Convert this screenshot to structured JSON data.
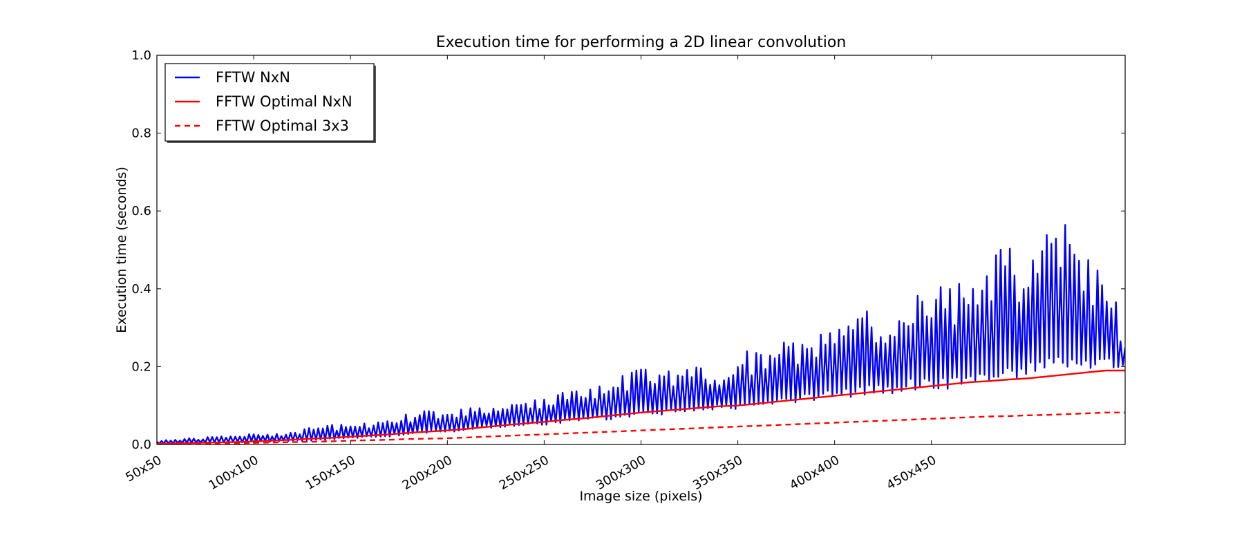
{
  "chart_data": {
    "type": "line",
    "title": "Execution time for performing a 2D linear convolution",
    "xlabel": "Image size (pixels)",
    "ylabel": "Execution time (seconds)",
    "xlim": [
      50,
      550
    ],
    "ylim": [
      0,
      1.0
    ],
    "x_ticks": [
      {
        "value": 50,
        "label": "50x50"
      },
      {
        "value": 100,
        "label": "100x100"
      },
      {
        "value": 150,
        "label": "150x150"
      },
      {
        "value": 200,
        "label": "200x200"
      },
      {
        "value": 250,
        "label": "250x250"
      },
      {
        "value": 300,
        "label": "300x300"
      },
      {
        "value": 350,
        "label": "350x350"
      },
      {
        "value": 400,
        "label": "400x400"
      },
      {
        "value": 450,
        "label": "450x450"
      }
    ],
    "y_ticks": [
      {
        "value": 0.0,
        "label": "0.0"
      },
      {
        "value": 0.2,
        "label": "0.2"
      },
      {
        "value": 0.4,
        "label": "0.4"
      },
      {
        "value": 0.6,
        "label": "0.6"
      },
      {
        "value": 0.8,
        "label": "0.8"
      },
      {
        "value": 1.0,
        "label": "1.0"
      }
    ],
    "grid": false,
    "legend_position": "top-left",
    "series": [
      {
        "name": "FFTW NxN",
        "color": "#0000ff",
        "style": "solid",
        "x": [
          50,
          60,
          70,
          80,
          90,
          100,
          110,
          120,
          130,
          140,
          150,
          160,
          170,
          180,
          190,
          200,
          210,
          220,
          230,
          240,
          250,
          260,
          270,
          280,
          290,
          300,
          310,
          320,
          330,
          340,
          350,
          360,
          370,
          380,
          390,
          400,
          410,
          420,
          430,
          440,
          450,
          460,
          470,
          480,
          490,
          500,
          510,
          520,
          530,
          540,
          550
        ],
        "y": [
          0.01,
          0.015,
          0.018,
          0.02,
          0.025,
          0.03,
          0.03,
          0.035,
          0.045,
          0.055,
          0.05,
          0.06,
          0.07,
          0.08,
          0.09,
          0.1,
          0.09,
          0.11,
          0.1,
          0.12,
          0.12,
          0.14,
          0.15,
          0.17,
          0.18,
          0.2,
          0.18,
          0.2,
          0.21,
          0.2,
          0.23,
          0.25,
          0.26,
          0.28,
          0.3,
          0.33,
          0.38,
          0.33,
          0.37,
          0.4,
          0.45,
          0.44,
          0.42,
          0.48,
          0.52,
          0.52,
          0.57,
          0.57,
          0.48,
          0.5,
          0.25
        ],
        "y_low": [
          0.002,
          0.003,
          0.004,
          0.005,
          0.005,
          0.006,
          0.007,
          0.008,
          0.01,
          0.012,
          0.015,
          0.018,
          0.02,
          0.025,
          0.03,
          0.03,
          0.035,
          0.04,
          0.045,
          0.05,
          0.05,
          0.055,
          0.06,
          0.06,
          0.065,
          0.07,
          0.075,
          0.08,
          0.085,
          0.09,
          0.09,
          0.095,
          0.1,
          0.105,
          0.11,
          0.12,
          0.12,
          0.13,
          0.13,
          0.14,
          0.14,
          0.14,
          0.15,
          0.155,
          0.16,
          0.17,
          0.18,
          0.19,
          0.19,
          0.19,
          0.2
        ]
      },
      {
        "name": "FFTW Optimal NxN",
        "color": "#ff0000",
        "style": "solid",
        "x": [
          50,
          60,
          70,
          80,
          90,
          100,
          110,
          120,
          130,
          140,
          150,
          160,
          170,
          180,
          190,
          200,
          210,
          220,
          230,
          240,
          250,
          260,
          270,
          280,
          290,
          300,
          310,
          320,
          330,
          340,
          350,
          360,
          370,
          380,
          390,
          400,
          410,
          420,
          430,
          440,
          450,
          460,
          470,
          480,
          490,
          500,
          510,
          520,
          530,
          540,
          550
        ],
        "y": [
          0.002,
          0.003,
          0.004,
          0.005,
          0.006,
          0.008,
          0.01,
          0.012,
          0.015,
          0.017,
          0.02,
          0.023,
          0.026,
          0.03,
          0.033,
          0.036,
          0.04,
          0.045,
          0.05,
          0.054,
          0.058,
          0.063,
          0.067,
          0.072,
          0.077,
          0.082,
          0.086,
          0.09,
          0.094,
          0.098,
          0.1,
          0.105,
          0.11,
          0.115,
          0.12,
          0.125,
          0.13,
          0.135,
          0.14,
          0.145,
          0.15,
          0.155,
          0.16,
          0.163,
          0.167,
          0.17,
          0.175,
          0.18,
          0.185,
          0.19,
          0.19
        ]
      },
      {
        "name": "FFTW Optimal 3x3",
        "color": "#ff0000",
        "style": "dashed",
        "x": [
          50,
          60,
          70,
          80,
          90,
          100,
          110,
          120,
          130,
          140,
          150,
          160,
          170,
          180,
          190,
          200,
          210,
          220,
          230,
          240,
          250,
          260,
          270,
          280,
          290,
          300,
          310,
          320,
          330,
          340,
          350,
          360,
          370,
          380,
          390,
          400,
          410,
          420,
          430,
          440,
          450,
          460,
          470,
          480,
          490,
          500,
          510,
          520,
          530,
          540,
          550
        ],
        "y": [
          0.001,
          0.001,
          0.002,
          0.002,
          0.003,
          0.004,
          0.005,
          0.006,
          0.007,
          0.008,
          0.01,
          0.011,
          0.012,
          0.014,
          0.015,
          0.016,
          0.018,
          0.02,
          0.022,
          0.024,
          0.026,
          0.028,
          0.03,
          0.032,
          0.034,
          0.036,
          0.038,
          0.04,
          0.042,
          0.044,
          0.046,
          0.048,
          0.05,
          0.052,
          0.054,
          0.056,
          0.058,
          0.06,
          0.062,
          0.064,
          0.066,
          0.068,
          0.07,
          0.072,
          0.073,
          0.075,
          0.076,
          0.078,
          0.08,
          0.082,
          0.082
        ]
      }
    ]
  }
}
